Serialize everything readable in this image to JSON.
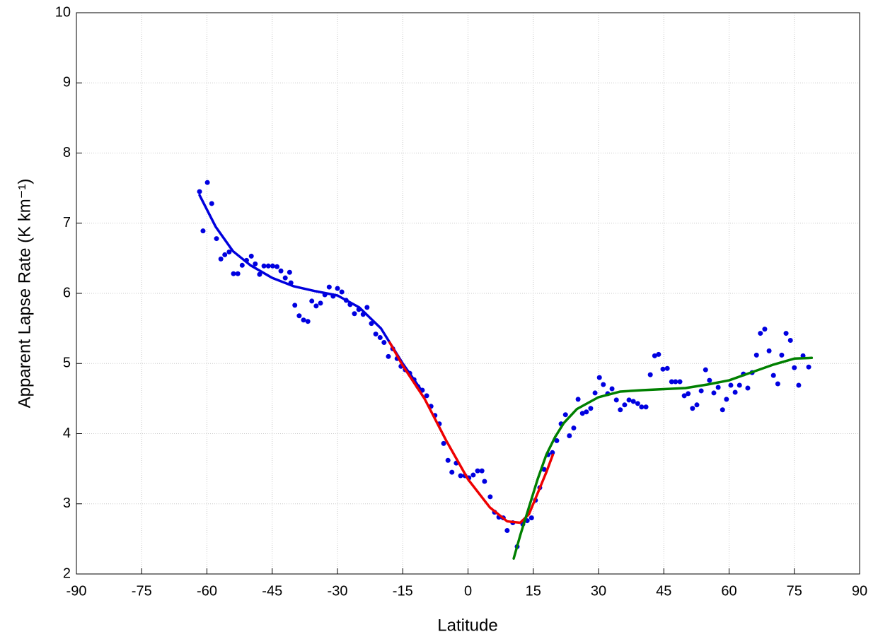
{
  "chart_data": {
    "type": "scatter",
    "x_label": "Latitude",
    "y_label": "Apparent Lapse Rate (K km⁻¹)",
    "xlim": [
      -90,
      90
    ],
    "ylim": [
      2,
      10
    ],
    "xticks": [
      -90,
      -75,
      -60,
      -45,
      -30,
      -15,
      0,
      15,
      30,
      45,
      60,
      75,
      90
    ],
    "yticks": [
      2,
      3,
      4,
      5,
      6,
      7,
      8,
      9,
      10
    ],
    "grid": true,
    "series": [
      {
        "type": "scatter",
        "color": "#0000e0",
        "x": [
          -61.7,
          -60.9,
          -59.9,
          -58.9,
          -57.8,
          -56.8,
          -55.9,
          -54.9,
          -53.9,
          -52.9,
          -51.9,
          -50.9,
          -49.8,
          -48.9,
          -47.9,
          -46.9,
          -45.9,
          -44.9,
          -43.9,
          -43.0,
          -42.0,
          -41.0,
          -40.7,
          -39.8,
          -38.8,
          -37.8,
          -36.8,
          -35.9,
          -34.9,
          -33.9,
          -32.9,
          -31.9,
          -31.0,
          -30.0,
          -29.0,
          -28.0,
          -27.1,
          -26.1,
          -25.1,
          -24.1,
          -23.2,
          -22.2,
          -21.2,
          -20.2,
          -19.3,
          -18.3,
          -17.3,
          -16.3,
          -15.4,
          -14.4,
          -13.4,
          -12.4,
          -11.5,
          -10.5,
          -9.5,
          -8.5,
          -7.6,
          -6.6,
          -5.6,
          -4.6,
          -3.7,
          -2.7,
          -1.7,
          -0.7,
          0.2,
          1.2,
          2.2,
          3.2,
          3.8,
          5.1,
          6.1,
          7.1,
          8.1,
          9.0,
          10.3,
          11.3,
          12.6,
          13.6,
          14.6,
          15.5,
          16.5,
          17.5,
          18.4,
          19.4,
          20.4,
          21.4,
          22.4,
          23.3,
          24.3,
          25.3,
          26.3,
          27.2,
          28.2,
          29.2,
          30.2,
          31.1,
          32.1,
          33.1,
          34.1,
          35.0,
          36.0,
          37.0,
          38.0,
          39.0,
          39.9,
          40.9,
          41.9,
          42.9,
          43.8,
          44.8,
          45.8,
          46.8,
          47.7,
          48.7,
          49.7,
          50.6,
          51.6,
          52.6,
          53.6,
          54.6,
          55.5,
          56.5,
          57.5,
          58.5,
          59.4,
          60.4,
          61.4,
          62.4,
          63.3,
          64.3,
          65.3,
          66.3,
          67.2,
          68.2,
          69.2,
          70.2,
          71.2,
          72.1,
          73.1,
          74.1,
          75.0,
          76.0,
          77.0,
          78.3
        ],
        "values": [
          7.45,
          6.89,
          7.58,
          7.28,
          6.78,
          6.49,
          6.55,
          6.59,
          6.28,
          6.28,
          6.4,
          6.47,
          6.53,
          6.42,
          6.27,
          6.39,
          6.39,
          6.39,
          6.38,
          6.32,
          6.22,
          6.3,
          6.15,
          5.83,
          5.68,
          5.62,
          5.6,
          5.89,
          5.82,
          5.86,
          5.98,
          6.09,
          5.96,
          6.07,
          6.02,
          5.9,
          5.84,
          5.71,
          5.77,
          5.7,
          5.8,
          5.57,
          5.42,
          5.37,
          5.3,
          5.1,
          5.21,
          5.07,
          4.96,
          4.91,
          4.86,
          4.77,
          4.67,
          4.62,
          4.54,
          4.39,
          4.26,
          4.14,
          3.86,
          3.62,
          3.45,
          3.58,
          3.4,
          3.4,
          3.37,
          3.41,
          3.47,
          3.47,
          3.32,
          3.1,
          2.88,
          2.81,
          2.8,
          2.62,
          2.73,
          2.39,
          2.71,
          2.76,
          2.8,
          3.05,
          3.23,
          3.49,
          3.7,
          3.73,
          3.9,
          4.14,
          4.27,
          3.97,
          4.08,
          4.49,
          4.29,
          4.31,
          4.36,
          4.58,
          4.8,
          4.7,
          4.57,
          4.64,
          4.48,
          4.34,
          4.41,
          4.48,
          4.46,
          4.43,
          4.38,
          4.38,
          4.84,
          5.11,
          5.13,
          4.92,
          4.93,
          4.74,
          4.74,
          4.74,
          4.54,
          4.57,
          4.36,
          4.41,
          4.61,
          4.91,
          4.76,
          4.58,
          4.66,
          4.34,
          4.49,
          4.69,
          4.59,
          4.69,
          4.85,
          4.65,
          4.87,
          5.12,
          5.43,
          5.49,
          5.18,
          4.83,
          4.71,
          5.12,
          5.43,
          5.33,
          4.94,
          4.69,
          5.11,
          4.95
        ]
      },
      {
        "type": "line",
        "color": "#0000dd",
        "x": [
          -61.7,
          -58,
          -54,
          -50,
          -45,
          -40,
          -35,
          -30,
          -25,
          -20,
          -15,
          -10.5
        ],
        "values": [
          7.4,
          6.95,
          6.6,
          6.4,
          6.22,
          6.1,
          6.03,
          5.97,
          5.8,
          5.5,
          5.0,
          4.6
        ]
      },
      {
        "type": "line",
        "color": "#ee0000",
        "x": [
          -18,
          -15,
          -10,
          -5,
          0,
          5,
          9,
          12,
          14,
          16,
          18,
          19.5
        ],
        "values": [
          5.3,
          4.97,
          4.5,
          3.9,
          3.35,
          2.95,
          2.75,
          2.73,
          2.85,
          3.15,
          3.45,
          3.7
        ]
      },
      {
        "type": "line",
        "color": "#008000",
        "x": [
          10.5,
          12,
          14,
          16,
          18,
          20,
          22,
          25,
          30,
          35,
          40,
          50,
          55,
          60,
          65,
          70,
          75,
          79
        ],
        "values": [
          2.22,
          2.55,
          2.95,
          3.35,
          3.7,
          3.95,
          4.15,
          4.35,
          4.52,
          4.6,
          4.62,
          4.65,
          4.7,
          4.76,
          4.87,
          4.98,
          5.07,
          5.08
        ]
      }
    ]
  }
}
